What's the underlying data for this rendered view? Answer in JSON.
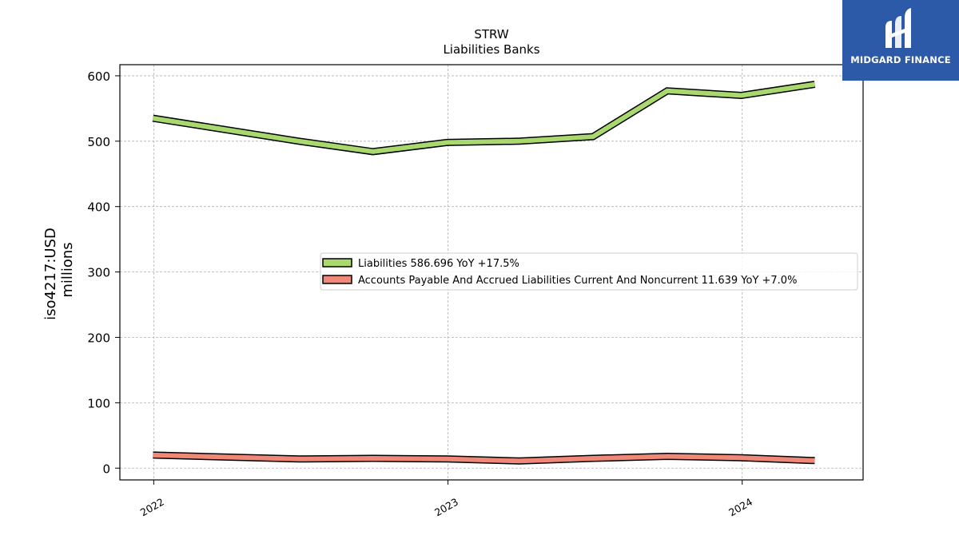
{
  "logo": {
    "text": "MIDGARD FINANCE",
    "bg_color": "#2c5aa8",
    "icon": "midgard-logo-icon"
  },
  "chart_data": {
    "type": "line",
    "title": "STRW",
    "subtitle": "Liabilities Banks",
    "ylabel_line1": "iso4217:USD",
    "ylabel_line2": "millions",
    "xlabel": "",
    "x_ticks": [
      "2022",
      "2023",
      "2024"
    ],
    "y_ticks": [
      0,
      100,
      200,
      300,
      400,
      500,
      600
    ],
    "xlim": [
      "2021-11-20",
      "2024-05-30"
    ],
    "ylim": [
      -18,
      617
    ],
    "grid": true,
    "legend_position": "center-right",
    "series": [
      {
        "name": "Liabilities  586.696 YoY +17.5%",
        "color": "#a9d86e",
        "x": [
          "2021-12-31",
          "2022-06-30",
          "2022-09-30",
          "2022-12-31",
          "2023-03-31",
          "2023-06-30",
          "2023-09-30",
          "2023-12-31",
          "2024-03-31"
        ],
        "values": [
          535,
          500,
          484,
          498,
          500,
          507,
          577,
          570,
          587
        ]
      },
      {
        "name": "Accounts Payable And Accrued Liabilities Current And Noncurrent  11.639 YoY +7.0%",
        "color": "#f08878",
        "x": [
          "2021-12-31",
          "2022-06-30",
          "2022-09-30",
          "2022-12-31",
          "2023-03-31",
          "2023-06-30",
          "2023-09-30",
          "2023-12-31",
          "2024-03-31"
        ],
        "values": [
          20,
          14,
          15,
          14,
          11,
          15,
          18,
          16,
          11.6
        ]
      }
    ]
  }
}
